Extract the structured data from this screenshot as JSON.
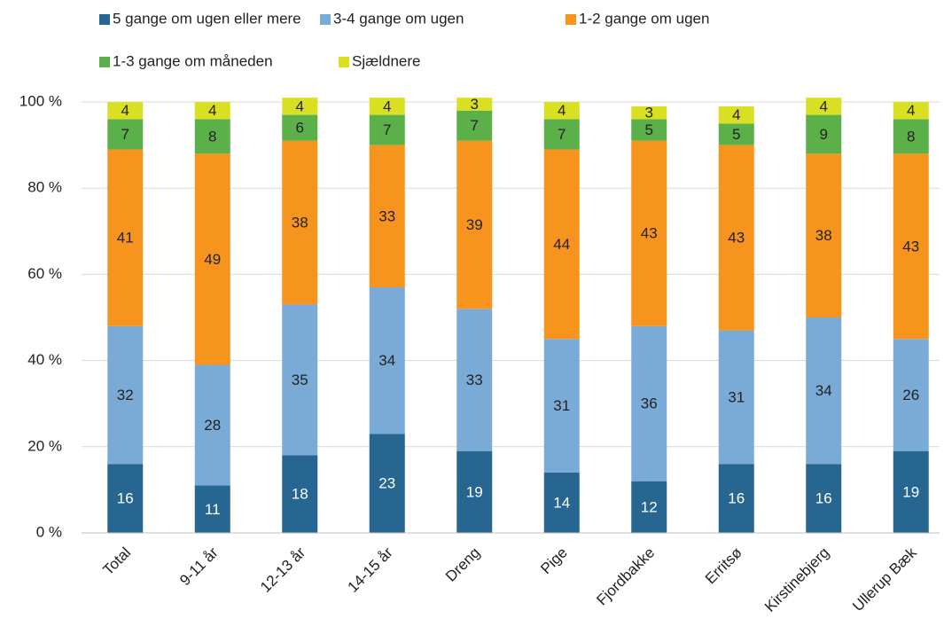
{
  "chart_data": {
    "type": "stacked_bar",
    "categories": [
      "Total",
      "9-11 år",
      "12-13 år",
      "14-15 år",
      "Dreng",
      "Pige",
      "Fjordbakke",
      "Erritsø",
      "Kirstinebjerg",
      "Ullerup Bæk"
    ],
    "series": [
      {
        "name": "5 gange om ugen eller mere",
        "color": "#276690",
        "values": [
          16,
          11,
          18,
          23,
          19,
          14,
          12,
          16,
          16,
          19
        ]
      },
      {
        "name": "3-4 gange om ugen",
        "color": "#7aabd6",
        "values": [
          32,
          28,
          35,
          34,
          33,
          31,
          36,
          31,
          34,
          26
        ]
      },
      {
        "name": "1-2 gange om ugen",
        "color": "#f7941d",
        "values": [
          41,
          49,
          38,
          33,
          39,
          44,
          43,
          43,
          38,
          43
        ]
      },
      {
        "name": "1-3 gange om måneden",
        "color": "#5bb04a",
        "values": [
          7,
          8,
          6,
          7,
          7,
          7,
          5,
          5,
          9,
          8
        ]
      },
      {
        "name": "Sjældnere",
        "color": "#d8e021",
        "values": [
          4,
          4,
          4,
          4,
          3,
          4,
          3,
          4,
          4,
          4
        ]
      }
    ],
    "ylim": [
      0,
      100
    ],
    "yticks": [
      {
        "value": 0,
        "label": "0 %"
      },
      {
        "value": 20,
        "label": "20 %"
      },
      {
        "value": 40,
        "label": "40 %"
      },
      {
        "value": 60,
        "label": "60 %"
      },
      {
        "value": 80,
        "label": "80 %"
      },
      {
        "value": 100,
        "label": "100 %"
      }
    ],
    "grid": true
  }
}
